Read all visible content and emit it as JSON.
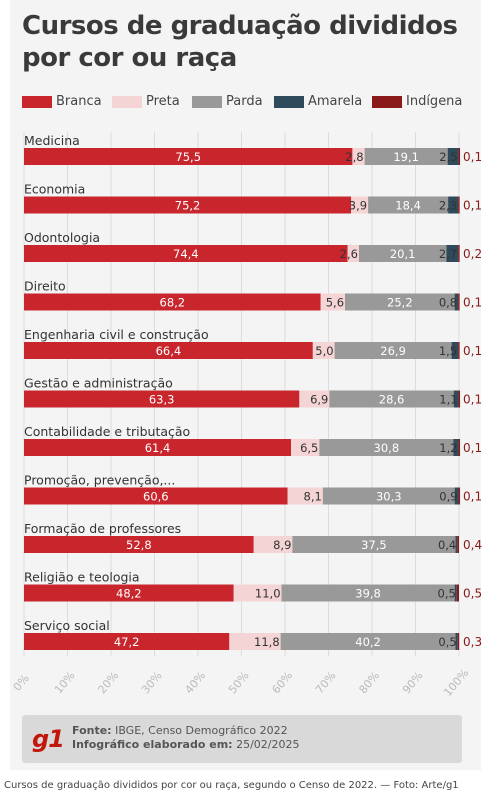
{
  "title": "Cursos de graduação divididos por cor ou raça",
  "legend": [
    {
      "label": "Branca",
      "color": "#c8262c"
    },
    {
      "label": "Preta",
      "color": "#f4d4d4"
    },
    {
      "label": "Parda",
      "color": "#999999"
    },
    {
      "label": "Amarela",
      "color": "#2f4a5a"
    },
    {
      "label": "Indígena",
      "color": "#8a1a1a"
    }
  ],
  "chart_data": {
    "type": "bar",
    "orientation": "horizontal-stacked-100",
    "categories": [
      "Medicina",
      "Economia",
      "Odontologia",
      "Direito",
      "Engenharia civil e construção",
      "Gestão e administração",
      "Contabilidade e tributação",
      "Promoção, prevenção,...",
      "Formação de professores",
      "Religião e teologia",
      "Serviço social"
    ],
    "series": [
      {
        "name": "Branca",
        "color": "#c8262c",
        "values": [
          75.5,
          75.2,
          74.4,
          68.2,
          66.4,
          63.3,
          61.4,
          60.6,
          52.8,
          48.2,
          47.2
        ],
        "labels": [
          "75,5",
          "75,2",
          "74,4",
          "68,2",
          "66,4",
          "63,3",
          "61,4",
          "60,6",
          "52,8",
          "48,2",
          "47,2"
        ]
      },
      {
        "name": "Preta",
        "color": "#f4d4d4",
        "values": [
          2.8,
          3.9,
          2.6,
          5.6,
          5.0,
          6.9,
          6.5,
          8.1,
          8.9,
          11.0,
          11.8
        ],
        "labels": [
          "2,8",
          "3,9",
          "2,6",
          "5,6",
          "5,0",
          "6,9",
          "6,5",
          "8,1",
          "8,9",
          "11,0",
          "11,8"
        ]
      },
      {
        "name": "Parda",
        "color": "#999999",
        "values": [
          19.1,
          18.4,
          20.1,
          25.2,
          26.9,
          28.6,
          30.8,
          30.3,
          37.5,
          39.8,
          40.2
        ],
        "labels": [
          "19,1",
          "18,4",
          "20,1",
          "25,2",
          "26,9",
          "28,6",
          "30,8",
          "30,3",
          "37,5",
          "39,8",
          "40,2"
        ]
      },
      {
        "name": "Amarela",
        "color": "#2f4a5a",
        "values": [
          2.5,
          2.3,
          2.7,
          0.8,
          1.5,
          1.1,
          1.2,
          0.9,
          0.4,
          0.5,
          0.5
        ],
        "labels": [
          "2,5",
          "2,3",
          "2,7",
          "0,8",
          "1,5",
          "1,1",
          "1,2",
          "0,9",
          "0,4",
          "0,5",
          "0,5"
        ]
      },
      {
        "name": "Indígena",
        "color": "#8a1a1a",
        "values": [
          0.1,
          0.1,
          0.2,
          0.1,
          0.1,
          0.1,
          0.1,
          0.1,
          0.4,
          0.5,
          0.3
        ],
        "labels": [
          "0,1",
          "0,1",
          "0,2",
          "0,1",
          "0,1",
          "0,1",
          "0,1",
          "0,1",
          "0,4",
          "0,5",
          "0,3"
        ]
      }
    ],
    "x_ticks": [
      "0%",
      "10%",
      "20%",
      "30%",
      "40%",
      "50%",
      "60%",
      "70%",
      "80%",
      "90%",
      "100%"
    ],
    "xlim": [
      0,
      100
    ],
    "grid": true
  },
  "footer": {
    "logo": "g1",
    "source_label": "Fonte:",
    "source_value": "IBGE, Censo Demográfico 2022",
    "made_label": "Infográfico elaborado em:",
    "made_value": "25/02/2025"
  },
  "caption": "Cursos de graduação divididos por cor ou raça, segundo o Censo de 2022. — Foto: Arte/g1"
}
